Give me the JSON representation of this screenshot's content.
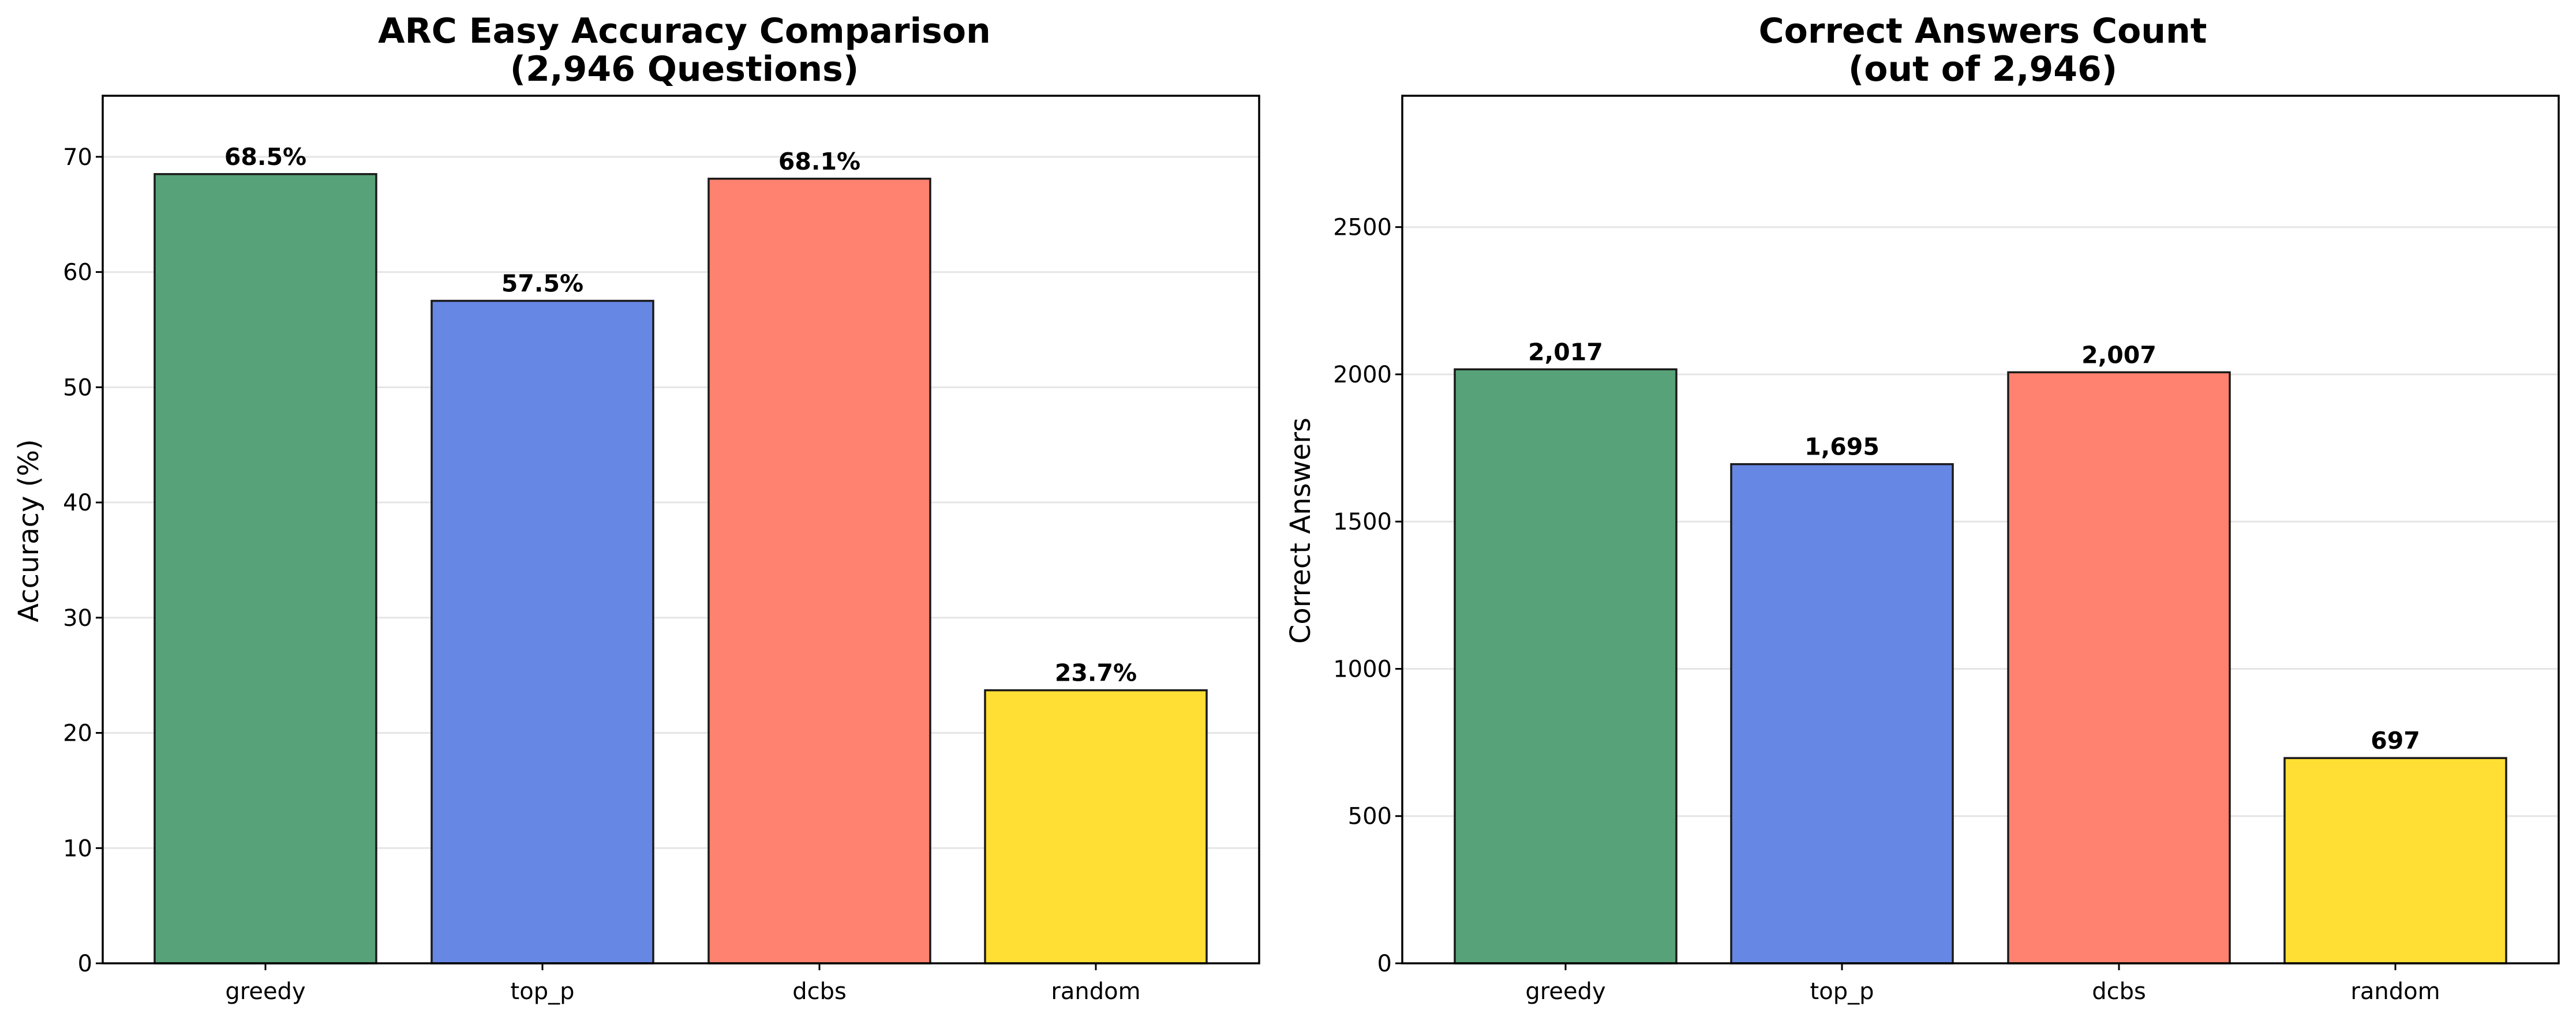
{
  "chart_data": [
    {
      "type": "bar",
      "title": "ARC Easy Accuracy Comparison",
      "subtitle": "(2,946 Questions)",
      "xlabel": "",
      "ylabel": "Accuracy (%)",
      "categories": [
        "greedy",
        "top_p",
        "dcbs",
        "random"
      ],
      "values": [
        68.5,
        57.5,
        68.1,
        23.7
      ],
      "data_labels": [
        "68.5%",
        "57.5%",
        "68.1%",
        "23.7%"
      ],
      "colors": [
        "#57a278",
        "#6787e5",
        "#fe826f",
        "#ffdf33"
      ],
      "ylim": [
        0,
        75.3
      ],
      "yticks": [
        0,
        10,
        20,
        30,
        40,
        50,
        60,
        70
      ],
      "grid": "y"
    },
    {
      "type": "bar",
      "title": "Correct Answers Count",
      "subtitle": "(out of 2,946)",
      "xlabel": "",
      "ylabel": "Correct Answers",
      "categories": [
        "greedy",
        "top_p",
        "dcbs",
        "random"
      ],
      "values": [
        2017,
        1695,
        2007,
        697
      ],
      "data_labels": [
        "2,017",
        "1,695",
        "2,007",
        "697"
      ],
      "colors": [
        "#57a278",
        "#6787e5",
        "#fe826f",
        "#ffdf33"
      ],
      "ylim": [
        0,
        2946
      ],
      "yticks": [
        0,
        500,
        1000,
        1500,
        2000,
        2500
      ],
      "grid": "y"
    }
  ]
}
